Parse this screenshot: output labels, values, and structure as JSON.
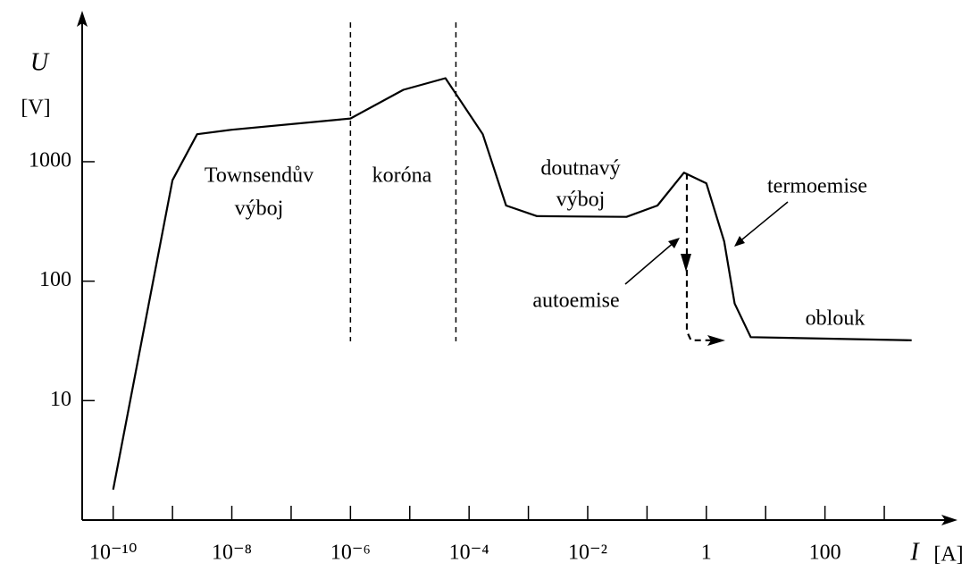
{
  "chart_data": {
    "type": "line",
    "log_x": true,
    "log_y": true,
    "x_label": "I",
    "x_unit": "[A]",
    "y_label": "U",
    "y_unit": "[V]",
    "xlim": [
      3e-11,
      16000
    ],
    "ylim": [
      1,
      16000
    ],
    "xticks": [
      {
        "value": 1e-10,
        "label": "10⁻¹⁰"
      },
      {
        "value": 1e-08,
        "label": "10⁻⁸"
      },
      {
        "value": 1e-06,
        "label": "10⁻⁶"
      },
      {
        "value": 0.0001,
        "label": "10⁻⁴"
      },
      {
        "value": 0.01,
        "label": "10⁻²"
      },
      1,
      100
    ],
    "xminorticks": [
      1e-09,
      1e-07,
      1e-05,
      0.001,
      0.1,
      10,
      1000
    ],
    "yticks": [
      10,
      100,
      1000
    ],
    "boundaries": [
      1e-06,
      6e-05
    ],
    "series": [
      {
        "color": "#000000",
        "x": [
          1e-10,
          1e-09,
          2.6e-09,
          1e-08,
          1e-06,
          7.8e-06,
          4e-05,
          0.00017,
          0.00042,
          0.0014,
          0.045,
          0.15,
          0.42,
          1,
          2,
          3,
          5.6,
          2900
        ],
        "values": [
          1.8,
          700,
          1700,
          1850,
          2300,
          4000,
          5000,
          1700,
          430,
          350,
          345,
          430,
          810,
          660,
          215,
          65,
          34,
          32
        ]
      },
      {
        "color": "#000000",
        "dashed": true,
        "x": [
          0.47,
          0.47,
          0.55,
          1.4
        ],
        "values": [
          800,
          38,
          32,
          32
        ]
      }
    ],
    "annotations": [
      "Townsendův",
      "výboj",
      "koróna",
      "doutnavý",
      "výboj",
      "termoemise",
      "autoemise",
      "oblouk"
    ]
  }
}
